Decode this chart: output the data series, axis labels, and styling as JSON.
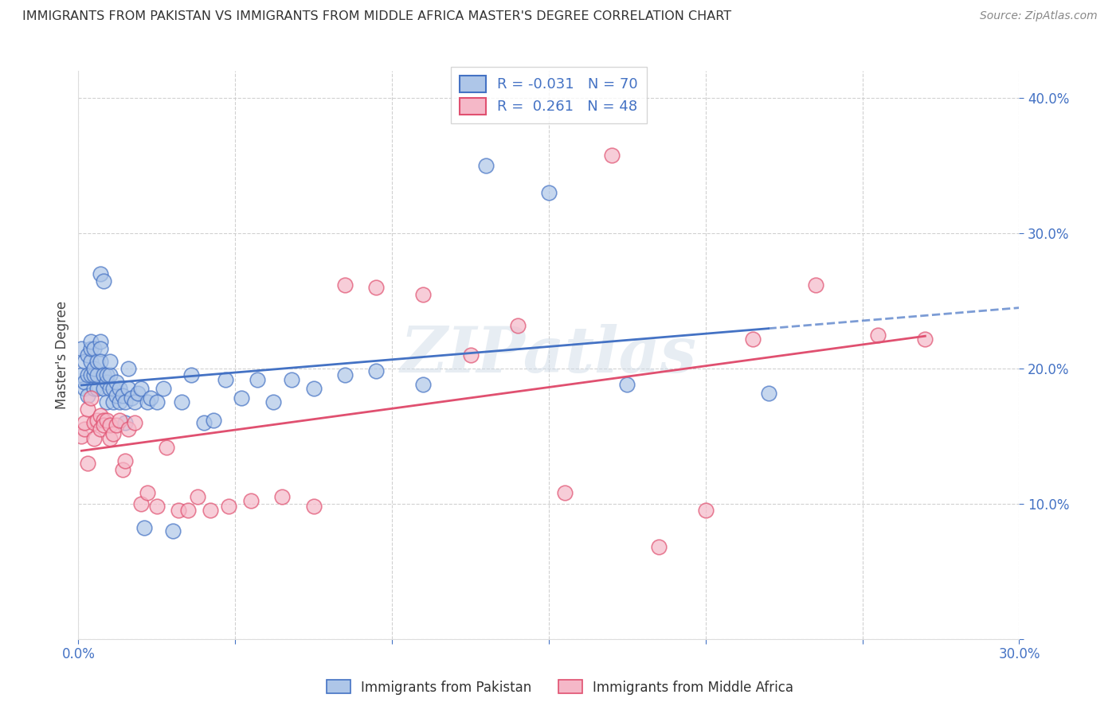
{
  "title": "IMMIGRANTS FROM PAKISTAN VS IMMIGRANTS FROM MIDDLE AFRICA MASTER'S DEGREE CORRELATION CHART",
  "source": "Source: ZipAtlas.com",
  "xlabel_bottom": "Immigrants from Pakistan",
  "xlabel_bottom2": "Immigrants from Middle Africa",
  "ylabel": "Master's Degree",
  "xlim": [
    0.0,
    0.3
  ],
  "ylim": [
    0.0,
    0.42
  ],
  "xticks": [
    0.0,
    0.05,
    0.1,
    0.15,
    0.2,
    0.25,
    0.3
  ],
  "yticks": [
    0.0,
    0.1,
    0.2,
    0.3,
    0.4
  ],
  "r_pakistan": -0.031,
  "n_pakistan": 70,
  "r_middle_africa": 0.261,
  "n_middle_africa": 48,
  "color_pakistan": "#aec6e8",
  "color_middle_africa": "#f5b8c8",
  "color_pakistan_line": "#4472c4",
  "color_middle_africa_line": "#e05070",
  "watermark": "ZIPatlas",
  "pakistan_x": [
    0.001,
    0.001,
    0.002,
    0.002,
    0.002,
    0.003,
    0.003,
    0.003,
    0.004,
    0.004,
    0.004,
    0.004,
    0.005,
    0.005,
    0.005,
    0.005,
    0.006,
    0.006,
    0.006,
    0.007,
    0.007,
    0.007,
    0.007,
    0.008,
    0.008,
    0.008,
    0.009,
    0.009,
    0.009,
    0.01,
    0.01,
    0.01,
    0.011,
    0.011,
    0.012,
    0.012,
    0.013,
    0.013,
    0.014,
    0.015,
    0.015,
    0.016,
    0.016,
    0.017,
    0.018,
    0.019,
    0.02,
    0.021,
    0.022,
    0.023,
    0.025,
    0.027,
    0.03,
    0.033,
    0.036,
    0.04,
    0.043,
    0.047,
    0.052,
    0.057,
    0.062,
    0.068,
    0.075,
    0.085,
    0.095,
    0.11,
    0.13,
    0.15,
    0.175,
    0.22
  ],
  "pakistan_y": [
    0.215,
    0.195,
    0.205,
    0.185,
    0.19,
    0.21,
    0.195,
    0.18,
    0.195,
    0.205,
    0.215,
    0.22,
    0.185,
    0.195,
    0.2,
    0.215,
    0.185,
    0.195,
    0.205,
    0.22,
    0.215,
    0.205,
    0.27,
    0.265,
    0.185,
    0.195,
    0.175,
    0.19,
    0.195,
    0.185,
    0.195,
    0.205,
    0.175,
    0.185,
    0.18,
    0.19,
    0.175,
    0.185,
    0.18,
    0.16,
    0.175,
    0.2,
    0.185,
    0.178,
    0.175,
    0.182,
    0.185,
    0.082,
    0.175,
    0.178,
    0.175,
    0.185,
    0.08,
    0.175,
    0.195,
    0.16,
    0.162,
    0.192,
    0.178,
    0.192,
    0.175,
    0.192,
    0.185,
    0.195,
    0.198,
    0.188,
    0.35,
    0.33,
    0.188,
    0.182
  ],
  "middle_africa_x": [
    0.001,
    0.002,
    0.002,
    0.003,
    0.003,
    0.004,
    0.005,
    0.005,
    0.006,
    0.007,
    0.007,
    0.008,
    0.008,
    0.009,
    0.01,
    0.01,
    0.011,
    0.012,
    0.013,
    0.014,
    0.015,
    0.016,
    0.018,
    0.02,
    0.022,
    0.025,
    0.028,
    0.032,
    0.035,
    0.038,
    0.042,
    0.048,
    0.055,
    0.065,
    0.075,
    0.085,
    0.095,
    0.11,
    0.125,
    0.14,
    0.155,
    0.17,
    0.185,
    0.2,
    0.215,
    0.235,
    0.255,
    0.27
  ],
  "middle_africa_y": [
    0.15,
    0.155,
    0.16,
    0.13,
    0.17,
    0.178,
    0.148,
    0.16,
    0.162,
    0.165,
    0.155,
    0.162,
    0.158,
    0.162,
    0.148,
    0.158,
    0.152,
    0.158,
    0.162,
    0.125,
    0.132,
    0.155,
    0.16,
    0.1,
    0.108,
    0.098,
    0.142,
    0.095,
    0.095,
    0.105,
    0.095,
    0.098,
    0.102,
    0.105,
    0.098,
    0.262,
    0.26,
    0.255,
    0.21,
    0.232,
    0.108,
    0.358,
    0.068,
    0.095,
    0.222,
    0.262,
    0.225,
    0.222
  ]
}
